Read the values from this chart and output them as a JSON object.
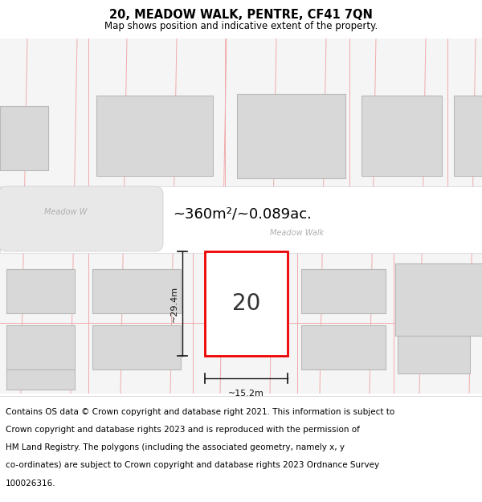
{
  "title": "20, MEADOW WALK, PENTRE, CF41 7QN",
  "subtitle": "Map shows position and indicative extent of the property.",
  "area_label": "~360m²/~0.089ac.",
  "plot_number": "20",
  "width_label": "~15.2m",
  "height_label": "~29.4m",
  "footer_lines": [
    "Contains OS data © Crown copyright and database right 2021. This information is subject to",
    "Crown copyright and database rights 2023 and is reproduced with the permission of",
    "HM Land Registry. The polygons (including the associated geometry, namely x, y",
    "co-ordinates) are subject to Crown copyright and database rights 2023 Ordnance Survey",
    "100026316."
  ],
  "bg_color": "#f5f5f5",
  "white": "#ffffff",
  "building_fill": "#d8d8d8",
  "building_edge": "#b8b8b8",
  "plot_fill": "#ffffff",
  "plot_edge": "#ee0000",
  "pink_line": "#f0aaaa",
  "road_label_color": "#b0b0b0",
  "dim_color": "#111111",
  "title_fontsize": 10.5,
  "subtitle_fontsize": 8.5,
  "area_fontsize": 13,
  "label_fontsize": 8,
  "footer_fontsize": 7.5,
  "plot_label_fontsize": 20,
  "road_label_fontsize": 7
}
